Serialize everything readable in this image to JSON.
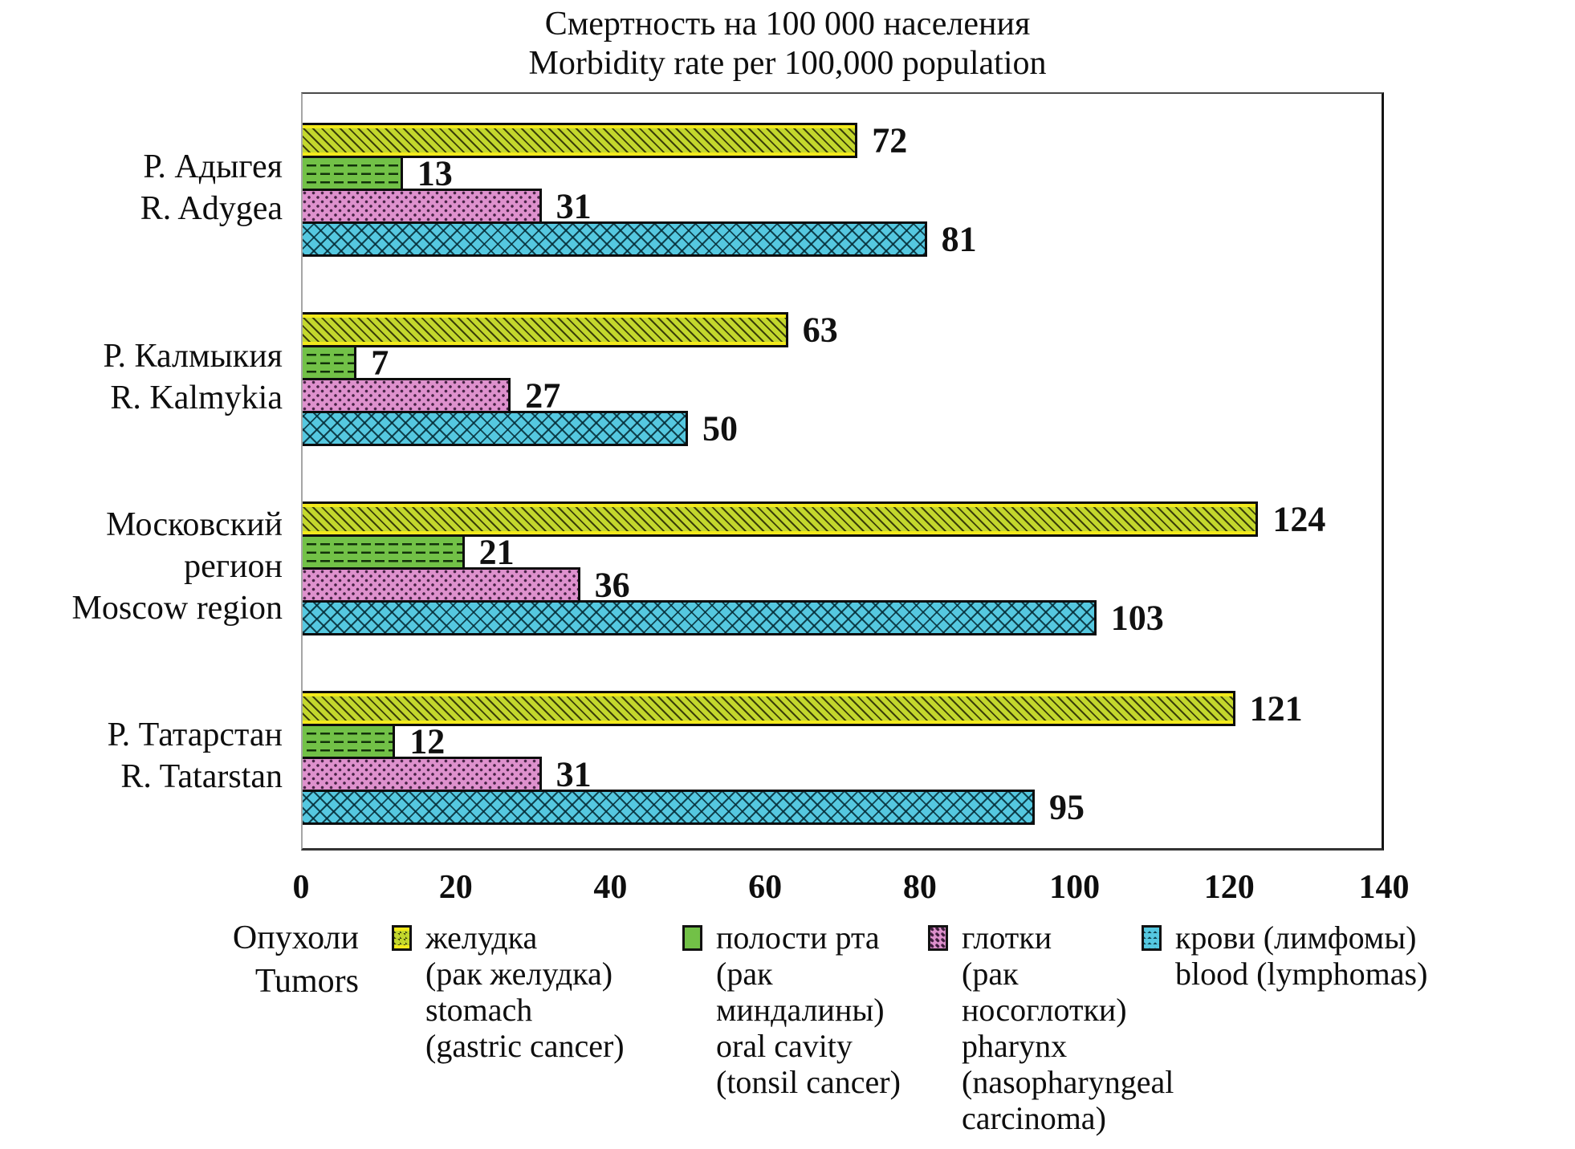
{
  "title": {
    "line1": "Смертность на 100 000 населения",
    "line2": "Morbidity rate per 100,000 population"
  },
  "chart_data": {
    "type": "bar",
    "orientation": "horizontal",
    "title": "Смертность на 100 000 населения / Morbidity rate per 100,000 population",
    "categories": [
      {
        "ru": "Р. Адыгея",
        "en": "R. Adygea"
      },
      {
        "ru": "Р. Калмыкия",
        "en": "R. Kalmykia"
      },
      {
        "ru": "Московский регион",
        "en": "Moscow region"
      },
      {
        "ru": "Р. Татарстан",
        "en": "R. Tatarstan"
      }
    ],
    "series": [
      {
        "key": "stomach",
        "name_lines": [
          "желудка",
          "(рак желудка)",
          "stomach",
          "(gastric cancer)"
        ],
        "values": [
          72,
          63,
          124,
          121
        ],
        "color": "#c3d72d",
        "pattern": "diagonal-hatch"
      },
      {
        "key": "oral-cavity",
        "name_lines": [
          "полости рта",
          "(рак",
          "миндалины)",
          "oral cavity",
          "(tonsil cancer)"
        ],
        "values": [
          13,
          7,
          21,
          12
        ],
        "color": "#72c147",
        "pattern": "horizontal-dashes"
      },
      {
        "key": "pharynx",
        "name_lines": [
          "глотки",
          "(рак",
          "носоглотки)",
          "pharynx",
          "(nasopharyngeal",
          "carcinoma)"
        ],
        "values": [
          31,
          27,
          36,
          31
        ],
        "color": "#de91cd",
        "pattern": "dots"
      },
      {
        "key": "blood",
        "name_lines": [
          "крови (лимфомы)",
          "blood (lymphomas)"
        ],
        "values": [
          81,
          50,
          103,
          95
        ],
        "color": "#55c8e0",
        "pattern": "diamond-lattice"
      }
    ],
    "xlim": [
      0,
      140
    ],
    "x_ticks": [
      0,
      20,
      40,
      60,
      80,
      100,
      120,
      140
    ],
    "legend_title_lines": [
      "Опухоли",
      "Tumors"
    ],
    "legend_position": "bottom",
    "grid": false,
    "bar_border_color": "#0d0d0d",
    "value_labels": true
  }
}
